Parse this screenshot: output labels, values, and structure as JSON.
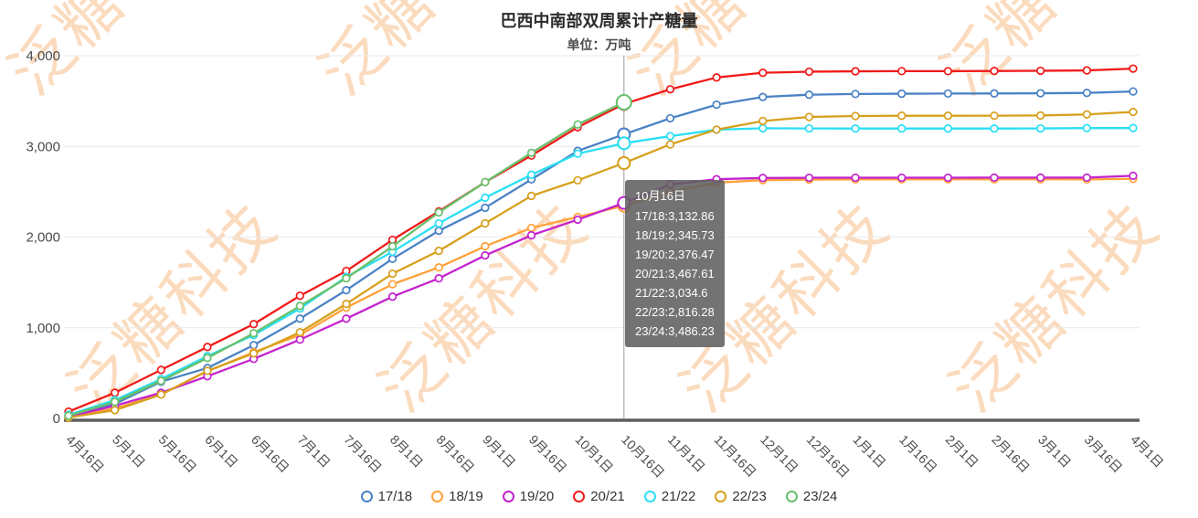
{
  "title": "巴西中南部双周累计产糖量",
  "subtitle": "单位：万吨",
  "watermark": {
    "text": "泛糖科技",
    "color": "#f7ac66",
    "opacity": 0.42
  },
  "tooltip": {
    "title": "10月16日",
    "lines": [
      "17/18:3,132.86",
      "18/19:2,345.73",
      "19/20:2,376.47",
      "20/21:3,467.61",
      "21/22:3,034.6",
      "22/23:2,816.28",
      "23/24:3,486.23"
    ]
  },
  "chart_data": {
    "type": "line",
    "title": "巴西中南部双周累计产糖量",
    "subtitle": "单位：万吨",
    "ylabel": "万吨",
    "ylim": [
      0,
      4000
    ],
    "ytick_labels": [
      "0",
      "1,000",
      "2,000",
      "3,000",
      "4,000"
    ],
    "grid": true,
    "legend_position": "bottom",
    "highlight_index": 12,
    "highlight_label": "10月16日",
    "categories": [
      "4月16日",
      "5月1日",
      "5月16日",
      "6月1日",
      "6月16日",
      "7月1日",
      "7月16日",
      "8月1日",
      "8月16日",
      "9月1日",
      "9月16日",
      "10月1日",
      "10月16日",
      "11月1日",
      "11月16日",
      "12月1日",
      "12月16日",
      "1月1日",
      "1月16日",
      "2月1日",
      "2月16日",
      "3月1日",
      "3月16日",
      "4月1日"
    ],
    "series": [
      {
        "name": "17/18",
        "color": "#4a82c4",
        "values": [
          35,
          160,
          405,
          556,
          808,
          1100,
          1414,
          1760,
          2070,
          2323,
          2636,
          2950,
          3132.86,
          3310,
          3460,
          3545,
          3570,
          3578,
          3581,
          3583,
          3584,
          3586,
          3590,
          3606
        ]
      },
      {
        "name": "18/19",
        "color": "#ffa138",
        "values": [
          15,
          110,
          265,
          520,
          730,
          920,
          1222,
          1480,
          1666,
          1899,
          2101,
          2222,
          2345.73,
          2500,
          2600,
          2628,
          2634,
          2636,
          2637,
          2637,
          2637,
          2637,
          2636,
          2642
        ]
      },
      {
        "name": "19/20",
        "color": "#c322cd",
        "values": [
          20,
          140,
          283,
          465,
          657,
          869,
          1100,
          1343,
          1545,
          1798,
          2020,
          2192,
          2376.47,
          2580,
          2638,
          2652,
          2654,
          2655,
          2655,
          2655,
          2656,
          2656,
          2656,
          2676
        ]
      },
      {
        "name": "20/21",
        "color": "#f01a1a",
        "values": [
          75,
          283,
          535,
          788,
          1040,
          1353,
          1626,
          1970,
          2283,
          2606,
          2899,
          3212,
          3467.61,
          3630,
          3760,
          3812,
          3824,
          3828,
          3830,
          3830,
          3832,
          3834,
          3838,
          3858
        ]
      },
      {
        "name": "21/22",
        "color": "#2bdff3",
        "values": [
          40,
          202,
          434,
          687,
          919,
          1212,
          1560,
          1838,
          2151,
          2434,
          2687,
          2920,
          3034.6,
          3113,
          3184,
          3200,
          3198,
          3197,
          3197,
          3197,
          3197,
          3198,
          3202,
          3202
        ]
      },
      {
        "name": "22/23",
        "color": "#d7a01d",
        "values": [
          10,
          91,
          263,
          525,
          717,
          950,
          1263,
          1596,
          1848,
          2151,
          2454,
          2626,
          2816.28,
          3022,
          3185,
          3280,
          3325,
          3335,
          3338,
          3338,
          3339,
          3341,
          3353,
          3380
        ]
      },
      {
        "name": "23/24",
        "color": "#68c06c",
        "values": [
          30,
          182,
          414,
          667,
          939,
          1240,
          1545,
          1899,
          2272,
          2606,
          2929,
          3242,
          3486.23
        ]
      }
    ]
  }
}
